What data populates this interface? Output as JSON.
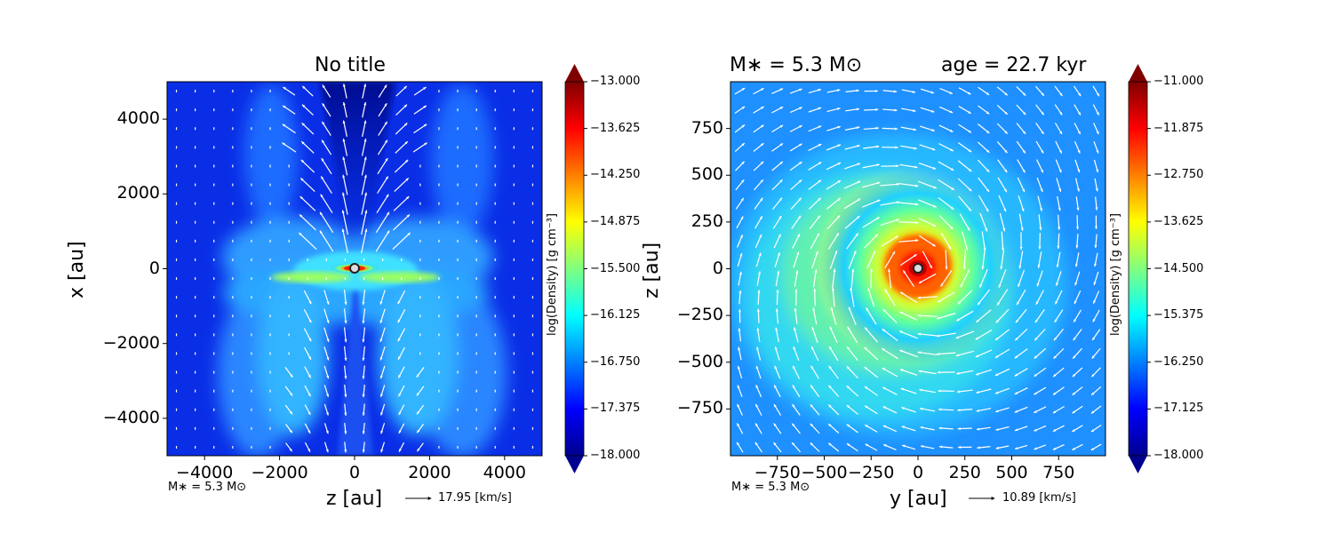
{
  "chart_data": [
    {
      "type": "heatmap",
      "title": "No title",
      "xlabel": "z [au]",
      "ylabel": "x [au]",
      "xlim": [
        -5000,
        5000
      ],
      "ylim": [
        -5000,
        5000
      ],
      "xticks": [
        "−4000",
        "−2000",
        "0",
        "2000",
        "4000"
      ],
      "xtick_values": [
        -4000,
        -2000,
        0,
        2000,
        4000
      ],
      "yticks": [
        "4000",
        "2000",
        "0",
        "−2000",
        "−4000"
      ],
      "ytick_values": [
        4000,
        2000,
        0,
        -2000,
        -4000
      ],
      "colorbar": {
        "label": "log(Density) [g cm⁻³]",
        "min": -18.0,
        "max": -13.0,
        "ticks": [
          "−13.000",
          "−13.625",
          "−14.250",
          "−14.875",
          "−15.500",
          "−16.125",
          "−16.750",
          "−17.375",
          "−18.000"
        ],
        "tick_values": [
          -13.0,
          -13.625,
          -14.25,
          -14.875,
          -15.5,
          -16.125,
          -16.75,
          -17.375,
          -18.0
        ]
      },
      "star_label": "M∗ = 5.3 M⊙",
      "vector_key": "17.95 [km/s]",
      "vector_key_speed": 17.95,
      "colormap": "jet"
    },
    {
      "type": "heatmap",
      "title_left": "M∗ = 5.3 M⊙",
      "title_right": "age = 22.7 kyr",
      "xlabel": "y [au]",
      "ylabel": "z [au]",
      "xlim": [
        -1000,
        1000
      ],
      "ylim": [
        -1000,
        1000
      ],
      "xticks": [
        "−750",
        "−500",
        "−250",
        "0",
        "250",
        "500",
        "750"
      ],
      "xtick_values": [
        -750,
        -500,
        -250,
        0,
        250,
        500,
        750
      ],
      "yticks": [
        "750",
        "500",
        "250",
        "0",
        "−250",
        "−500",
        "−750"
      ],
      "ytick_values": [
        750,
        500,
        250,
        0,
        -250,
        -500,
        -750
      ],
      "colorbar": {
        "label": "log(Density) [g cm⁻³]",
        "min": -18.0,
        "max": -11.0,
        "ticks": [
          "−11.000",
          "−11.875",
          "−12.750",
          "−13.625",
          "−14.500",
          "−15.375",
          "−16.250",
          "−17.125",
          "−18.000"
        ],
        "tick_values": [
          -11.0,
          -11.875,
          -12.75,
          -13.625,
          -14.5,
          -15.375,
          -16.25,
          -17.125,
          -18.0
        ]
      },
      "star_label": "M∗ = 5.3 M⊙",
      "vector_key": "10.89 [km/s]",
      "vector_key_speed": 10.89,
      "colormap": "jet"
    }
  ]
}
